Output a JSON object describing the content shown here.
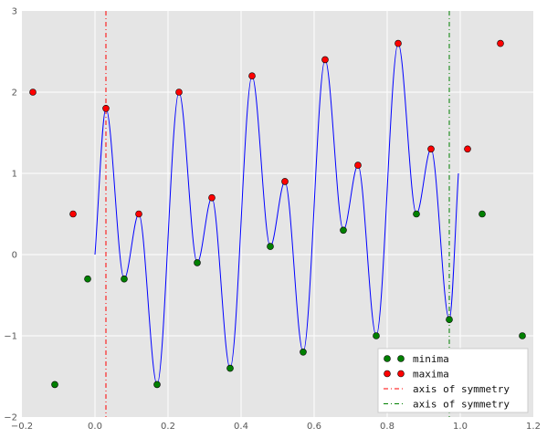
{
  "chart_data": {
    "type": "line",
    "title": "",
    "xlabel": "",
    "ylabel": "",
    "xlim": [
      -0.2,
      1.2
    ],
    "ylim": [
      -2,
      3
    ],
    "xticks": [
      -0.2,
      0.0,
      0.2,
      0.4,
      0.6,
      0.8,
      1.0,
      1.2
    ],
    "yticks": [
      -2,
      -1,
      0,
      1,
      2,
      3
    ],
    "x_tick_labels": [
      "−0.2",
      "0.0",
      "0.2",
      "0.4",
      "0.6",
      "0.8",
      "1.0",
      "1.2"
    ],
    "y_tick_labels": [
      "−2",
      "−1",
      "0",
      "1",
      "2",
      "3"
    ],
    "grid": true,
    "legend_position": "bottom-right",
    "curve": {
      "color": "#0000ff",
      "x_range": [
        0.0,
        0.995
      ],
      "control_points": [
        [
          0.0,
          0.0
        ],
        [
          0.03,
          1.8
        ],
        [
          0.08,
          -0.3
        ],
        [
          0.12,
          0.5
        ],
        [
          0.17,
          -1.6
        ],
        [
          0.23,
          2.0
        ],
        [
          0.28,
          -0.1
        ],
        [
          0.32,
          0.7
        ],
        [
          0.37,
          -1.4
        ],
        [
          0.43,
          2.2
        ],
        [
          0.48,
          0.1
        ],
        [
          0.52,
          0.9
        ],
        [
          0.57,
          -1.2
        ],
        [
          0.63,
          2.4
        ],
        [
          0.68,
          0.3
        ],
        [
          0.72,
          1.1
        ],
        [
          0.77,
          -1.0
        ],
        [
          0.83,
          2.6
        ],
        [
          0.88,
          0.5
        ],
        [
          0.92,
          1.3
        ],
        [
          0.97,
          -0.8
        ],
        [
          0.995,
          1.0
        ]
      ]
    },
    "series": [
      {
        "name": "minima",
        "color": "#008000",
        "marker": "circle",
        "points": [
          [
            -0.11,
            -1.6
          ],
          [
            -0.02,
            -0.3
          ],
          [
            0.08,
            -0.3
          ],
          [
            0.17,
            -1.6
          ],
          [
            0.28,
            -0.1
          ],
          [
            0.37,
            -1.4
          ],
          [
            0.48,
            0.1
          ],
          [
            0.57,
            -1.2
          ],
          [
            0.68,
            0.3
          ],
          [
            0.77,
            -1.0
          ],
          [
            0.88,
            0.5
          ],
          [
            0.97,
            -0.8
          ],
          [
            1.06,
            0.5
          ],
          [
            1.17,
            -1.0
          ]
        ]
      },
      {
        "name": "maxima",
        "color": "#ff0000",
        "marker": "circle",
        "points": [
          [
            -0.17,
            2.0
          ],
          [
            -0.06,
            0.5
          ],
          [
            0.03,
            1.8
          ],
          [
            0.12,
            0.5
          ],
          [
            0.23,
            2.0
          ],
          [
            0.32,
            0.7
          ],
          [
            0.43,
            2.2
          ],
          [
            0.52,
            0.9
          ],
          [
            0.63,
            2.4
          ],
          [
            0.72,
            1.1
          ],
          [
            0.83,
            2.6
          ],
          [
            0.92,
            1.3
          ],
          [
            1.02,
            1.3
          ],
          [
            1.11,
            2.6
          ]
        ]
      },
      {
        "name": "axis of symmetry",
        "color": "#ff0000",
        "style": "dash-dot",
        "x": 0.03
      },
      {
        "name": "axis of symmetry",
        "color": "#008000",
        "style": "dash-dot",
        "x": 0.97
      }
    ]
  }
}
